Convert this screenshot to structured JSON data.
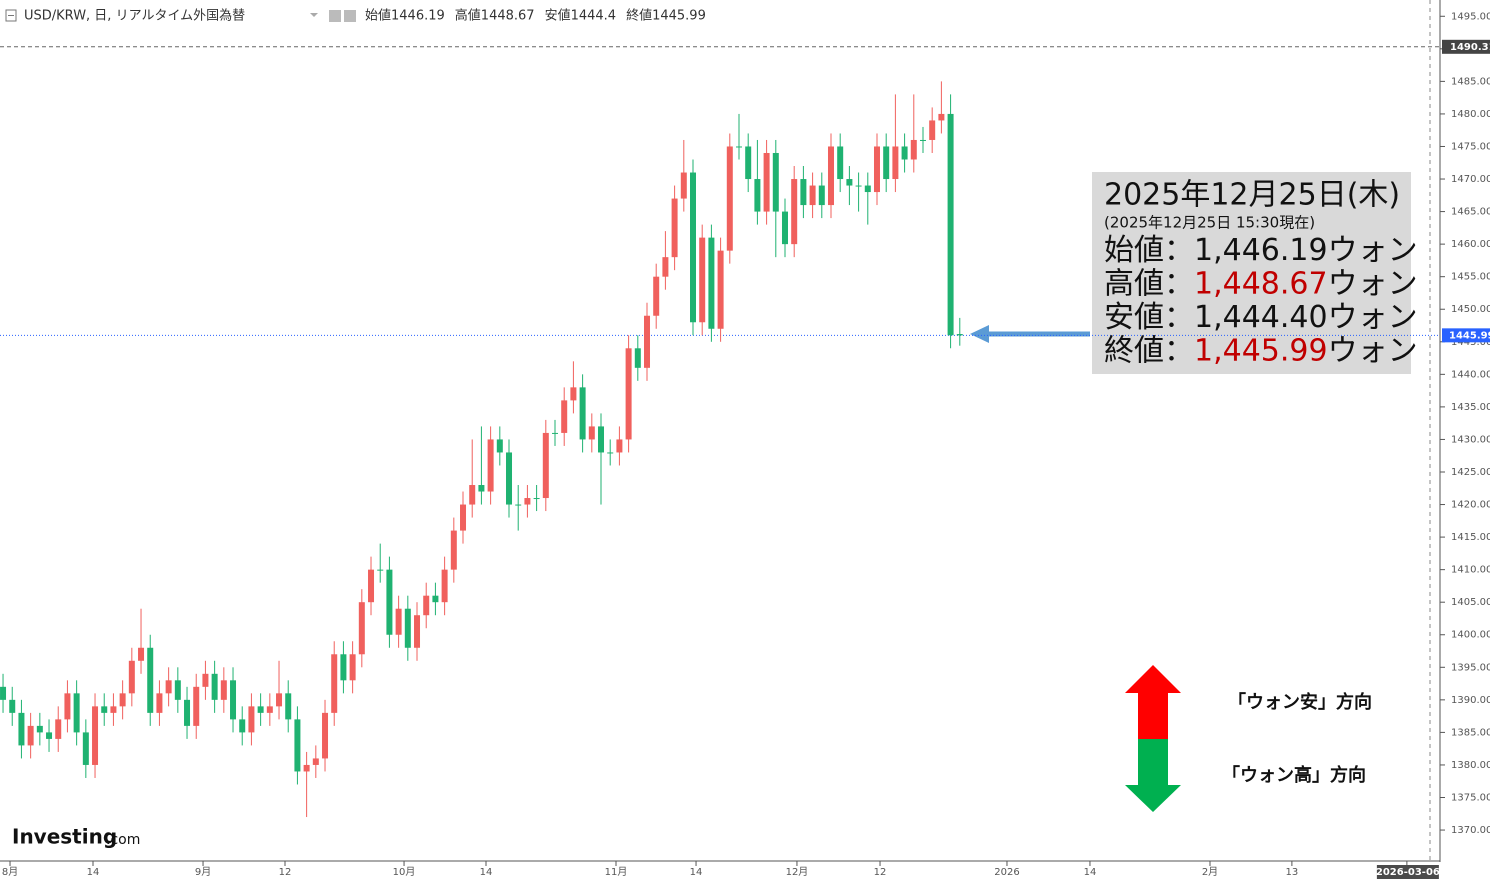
{
  "chart_data": {
    "type": "candlestick",
    "title": "USD/KRW, 日, リアルタイム外国為替",
    "ohlc_labels": [
      "始値",
      "高値",
      "安値",
      "終値"
    ],
    "up_color": "#f0605d",
    "down_color": "#1fb271",
    "open": [
      1392,
      1390,
      1388,
      1383,
      1386,
      1385,
      1384,
      1387,
      1391,
      1385,
      1380,
      1389,
      1388,
      1389,
      1391,
      1396,
      1398,
      1388,
      1391,
      1393,
      1390,
      1386,
      1392,
      1394,
      1390,
      1393,
      1387,
      1385,
      1389,
      1388,
      1389,
      1391,
      1387,
      1379,
      1380,
      1381,
      1388,
      1397,
      1393,
      1397,
      1405,
      1410,
      1410,
      1400,
      1404,
      1398,
      1403,
      1406,
      1405,
      1410,
      1416,
      1420,
      1423,
      1422,
      1430,
      1428,
      1420,
      1420,
      1421,
      1421,
      1431,
      1431,
      1436,
      1438,
      1430,
      1432,
      1428,
      1428,
      1430,
      1444,
      1441,
      1449,
      1455,
      1458,
      1467,
      1471,
      1448,
      1461,
      1447,
      1459,
      1475,
      1475,
      1470,
      1465,
      1474,
      1465,
      1460,
      1470,
      1466,
      1469,
      1466,
      1475,
      1470,
      1469,
      1469,
      1468,
      1475,
      1470,
      1475,
      1473,
      1476,
      1476,
      1479,
      1480,
      1446.19
    ],
    "high": [
      1394,
      1392,
      1390,
      1388,
      1388,
      1387,
      1389,
      1393,
      1393,
      1387,
      1391,
      1391,
      1391,
      1393,
      1398,
      1404,
      1400,
      1393,
      1395,
      1395,
      1392,
      1394,
      1396,
      1396,
      1395,
      1395,
      1389,
      1391,
      1391,
      1391,
      1396,
      1393,
      1389,
      1382,
      1383,
      1390,
      1399,
      1399,
      1399,
      1407,
      1412,
      1414,
      1412,
      1406,
      1406,
      1405,
      1408,
      1408,
      1412,
      1418,
      1422,
      1430,
      1432,
      1432,
      1432,
      1430,
      1423,
      1423,
      1423,
      1433,
      1433,
      1438,
      1442,
      1440,
      1434,
      1434,
      1430,
      1432,
      1446,
      1446,
      1451,
      1457,
      1462,
      1469,
      1476,
      1473,
      1463,
      1463,
      1461,
      1477,
      1480,
      1477,
      1476,
      1476,
      1476,
      1467,
      1472,
      1472,
      1471,
      1471,
      1477,
      1477,
      1472,
      1471,
      1471,
      1477,
      1477,
      1483,
      1477,
      1483,
      1478,
      1481,
      1485,
      1483,
      1448.67
    ],
    "low": [
      1388,
      1386,
      1381,
      1381,
      1383,
      1382,
      1382,
      1385,
      1383,
      1378,
      1378,
      1386,
      1386,
      1387,
      1389,
      1394,
      1386,
      1386,
      1389,
      1388,
      1384,
      1384,
      1390,
      1388,
      1388,
      1385,
      1383,
      1383,
      1386,
      1386,
      1387,
      1385,
      1377,
      1372,
      1378,
      1379,
      1386,
      1391,
      1391,
      1395,
      1403,
      1408,
      1398,
      1398,
      1396,
      1396,
      1401,
      1403,
      1403,
      1408,
      1414,
      1418,
      1420,
      1420,
      1426,
      1418,
      1416,
      1418,
      1419,
      1419,
      1429,
      1429,
      1434,
      1428,
      1428,
      1420,
      1426,
      1426,
      1428,
      1439,
      1439,
      1447,
      1453,
      1456,
      1465,
      1446,
      1446,
      1445,
      1445,
      1457,
      1473,
      1468,
      1463,
      1463,
      1458,
      1458,
      1458,
      1464,
      1464,
      1464,
      1464,
      1468,
      1466,
      1465,
      1463,
      1466,
      1468,
      1468,
      1471,
      1471,
      1474,
      1474,
      1477,
      1444,
      1444.4
    ],
    "close": [
      1390,
      1388,
      1383,
      1386,
      1385,
      1384,
      1387,
      1391,
      1385,
      1380,
      1389,
      1388,
      1389,
      1391,
      1396,
      1398,
      1388,
      1391,
      1393,
      1390,
      1386,
      1392,
      1394,
      1390,
      1393,
      1387,
      1385,
      1389,
      1388,
      1389,
      1391,
      1387,
      1379,
      1380,
      1381,
      1388,
      1397,
      1393,
      1397,
      1405,
      1410,
      1410,
      1400,
      1404,
      1398,
      1403,
      1406,
      1405,
      1410,
      1416,
      1420,
      1423,
      1422,
      1430,
      1428,
      1420,
      1420,
      1421,
      1421,
      1431,
      1431,
      1436,
      1438,
      1430,
      1432,
      1428,
      1428,
      1430,
      1444,
      1441,
      1449,
      1455,
      1458,
      1467,
      1471,
      1448,
      1461,
      1447,
      1459,
      1475,
      1475,
      1470,
      1465,
      1474,
      1465,
      1460,
      1470,
      1466,
      1469,
      1466,
      1475,
      1470,
      1469,
      1469,
      1468,
      1475,
      1470,
      1475,
      1473,
      1476,
      1476,
      1479,
      1480,
      1446,
      1445.99
    ],
    "xlim": [
      -0.33,
      156.2
    ],
    "xticks": [
      {
        "value": 0.76,
        "label": "8月"
      },
      {
        "value": 9.78,
        "label": "14"
      },
      {
        "value": 21.74,
        "label": "9月"
      },
      {
        "value": 30.65,
        "label": "12"
      },
      {
        "value": 43.59,
        "label": "10月"
      },
      {
        "value": 52.5,
        "label": "14"
      },
      {
        "value": 66.63,
        "label": "11月"
      },
      {
        "value": 75.33,
        "label": "14"
      },
      {
        "value": 86.3,
        "label": "12月"
      },
      {
        "value": 95.33,
        "label": "12"
      },
      {
        "value": 109.13,
        "label": "2026"
      },
      {
        "value": 118.15,
        "label": "14"
      },
      {
        "value": 131.2,
        "label": "2月"
      },
      {
        "value": 140.1,
        "label": "13"
      },
      {
        "value": 152.6,
        "label": "2026-03-06"
      }
    ],
    "ylim": [
      1365.4,
      1497.5
    ],
    "yticks": [
      {
        "value": 1370,
        "label": "1370.00"
      },
      {
        "value": 1375,
        "label": "1375.00"
      },
      {
        "value": 1380,
        "label": "1380.00"
      },
      {
        "value": 1385,
        "label": "1385.00"
      },
      {
        "value": 1390,
        "label": "1390.00"
      },
      {
        "value": 1395,
        "label": "1395.00"
      },
      {
        "value": 1400,
        "label": "1400.00"
      },
      {
        "value": 1405,
        "label": "1405.00"
      },
      {
        "value": 1410,
        "label": "1410.00"
      },
      {
        "value": 1415,
        "label": "1415.00"
      },
      {
        "value": 1420,
        "label": "1420.00"
      },
      {
        "value": 1425,
        "label": "1425.00"
      },
      {
        "value": 1430,
        "label": "1430.00"
      },
      {
        "value": 1435,
        "label": "1435.00"
      },
      {
        "value": 1440,
        "label": "1440.00"
      },
      {
        "value": 1445,
        "label": "1445.00"
      },
      {
        "value": 1450,
        "label": "1450.00"
      },
      {
        "value": 1455,
        "label": "1455.00"
      },
      {
        "value": 1460,
        "label": "1460.00"
      },
      {
        "value": 1465,
        "label": "1465.00"
      },
      {
        "value": 1470,
        "label": "1470.00"
      },
      {
        "value": 1475,
        "label": "1475.00"
      },
      {
        "value": 1480,
        "label": "1480.00"
      },
      {
        "value": 1485,
        "label": "1485.00"
      },
      {
        "value": 1490,
        "label": "1490.00"
      },
      {
        "value": 1495,
        "label": "1495.00"
      }
    ],
    "high_line": 1490.31,
    "last_line": 1445.99,
    "last_color": "#2962ff",
    "info_box": {
      "date": "2025年12月25日(木)",
      "asof": "(2025年12月25日 15:30現在)",
      "sep": "：",
      "unit": "ウォン",
      "lines": [
        {
          "label": "始値",
          "value": "1,446.19",
          "color": "#111111"
        },
        {
          "label": "高値",
          "value": "1,448.67",
          "color": "#c00000"
        },
        {
          "label": "安値",
          "value": "1,444.40",
          "color": "#111111"
        },
        {
          "label": "終値",
          "value": "1,445.99",
          "color": "#c00000"
        }
      ]
    },
    "direction": {
      "up": "「ウォン安」方向",
      "down": "「ウォン高」方向"
    },
    "logo": {
      "main": "Investing",
      "suffix": ".com"
    }
  }
}
